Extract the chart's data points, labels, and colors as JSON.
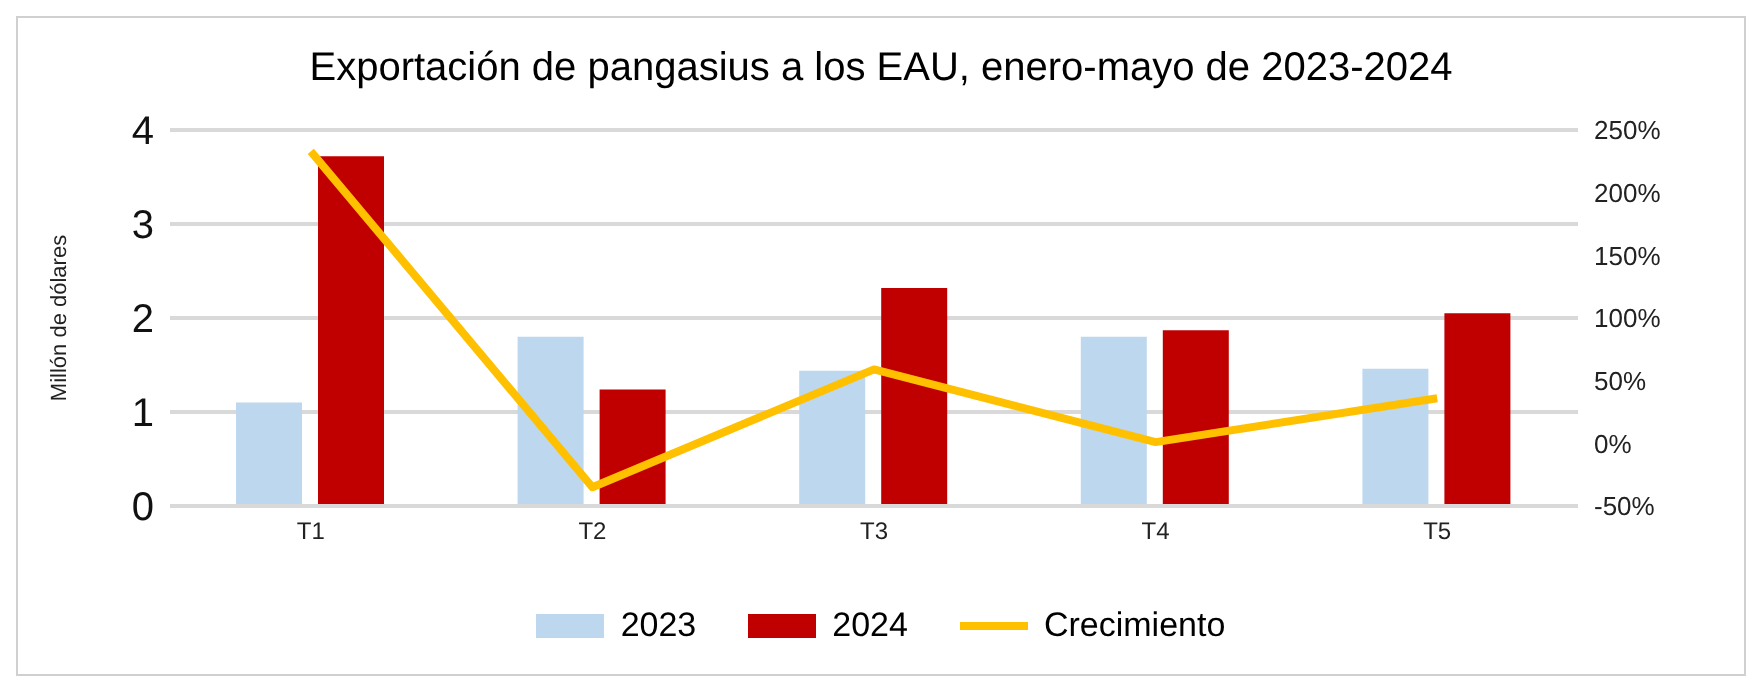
{
  "chart_data": {
    "type": "bar",
    "title": "Exportación de pangasius a los EAU, enero-mayo de 2023-2024",
    "ylabel": "Millón de dólares",
    "categories": [
      "T1",
      "T2",
      "T3",
      "T4",
      "T5"
    ],
    "series": [
      {
        "name": "2023",
        "color": "#bdd7ee",
        "values": [
          1.1,
          1.8,
          1.44,
          1.8,
          1.46
        ]
      },
      {
        "name": "2024",
        "color": "#c00000",
        "values": [
          3.72,
          1.24,
          2.32,
          1.87,
          2.05
        ]
      },
      {
        "name": "Crecimiento",
        "type": "line",
        "axis": "y2",
        "color": "#ffc000",
        "values": [
          233,
          -35,
          59,
          1,
          36
        ]
      }
    ],
    "ylim": [
      0,
      4
    ],
    "yticks": [
      0,
      1,
      2,
      3,
      4
    ],
    "y2lim": [
      -50,
      250
    ],
    "y2ticks": [
      {
        "value": -50,
        "label": "-50%"
      },
      {
        "value": 0,
        "label": "0%"
      },
      {
        "value": 50,
        "label": "50%"
      },
      {
        "value": 100,
        "label": "100%"
      },
      {
        "value": 150,
        "label": "150%"
      },
      {
        "value": 200,
        "label": "200%"
      },
      {
        "value": 250,
        "label": "250%"
      }
    ],
    "grid": "y",
    "legend": "bottom",
    "marker": "none"
  }
}
